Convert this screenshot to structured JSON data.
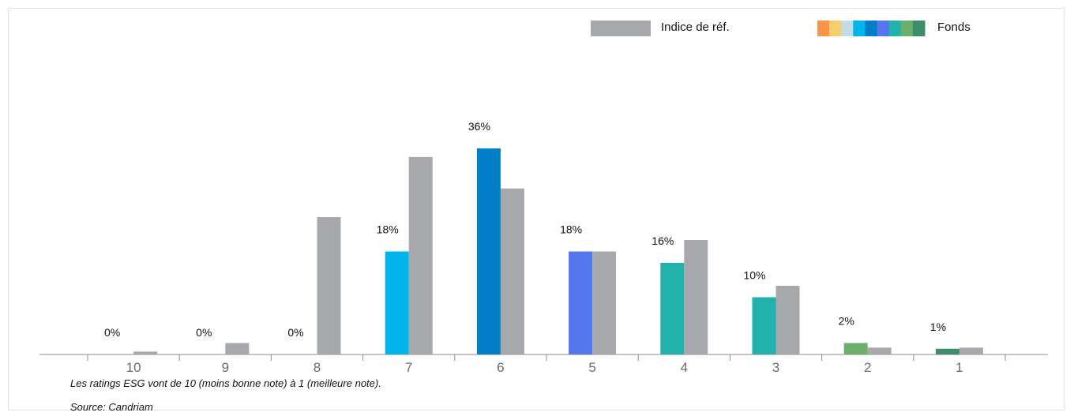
{
  "chart_data": {
    "type": "bar",
    "categories": [
      "10",
      "9",
      "8",
      "7",
      "6",
      "5",
      "4",
      "3",
      "2",
      "1"
    ],
    "series": [
      {
        "name": "Fonds",
        "values": [
          0,
          0,
          0,
          18,
          36,
          18,
          16,
          10,
          2,
          1
        ],
        "labels": [
          "0%",
          "0%",
          "0%",
          "18%",
          "36%",
          "18%",
          "16%",
          "10%",
          "2%",
          "1%"
        ],
        "colors": [
          "#f7964a",
          "#f7cf6e",
          "#c4dce8",
          "#00b5ea",
          "#007ec6",
          "#5577ee",
          "#22b1ab",
          "#22b1ab",
          "#6aaf6a",
          "#3d8c6a"
        ]
      },
      {
        "name": "Indice de réf.",
        "values": [
          0.5,
          2,
          24,
          34.5,
          29,
          18,
          20,
          12,
          1.2,
          1.2
        ],
        "color": "#a7a8ac"
      }
    ],
    "legend": {
      "position": "top-right",
      "fund_swatch_colors": [
        "#f7964a",
        "#f7cf6e",
        "#c4dce8",
        "#00b5ea",
        "#007ec6",
        "#5577ee",
        "#22b1ab",
        "#6aaf6a",
        "#3d8c6a"
      ]
    },
    "ylim": [
      0,
      40
    ],
    "grid": false,
    "xlabel": "",
    "ylabel": ""
  },
  "notes": {
    "scale": "Les ratings ESG vont de 10 (moins bonne note) à 1 (meilleure note).",
    "source": "Source: Candriam"
  }
}
